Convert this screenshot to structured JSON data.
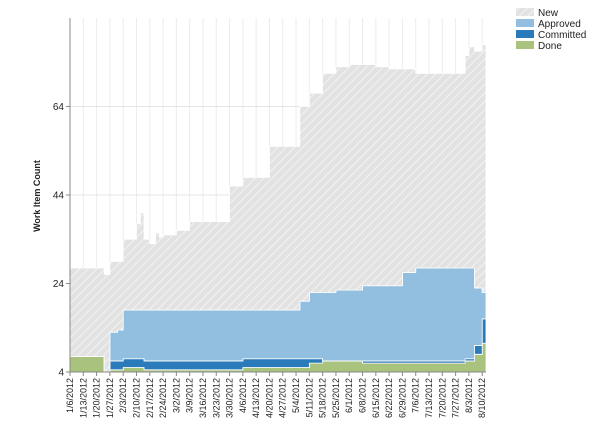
{
  "chart_data": {
    "type": "area",
    "stacked": true,
    "ylabel": "Work Item Count",
    "xlabel": "",
    "ylim": [
      4,
      84
    ],
    "y_ticks": [
      4,
      24,
      44,
      64
    ],
    "x_ticks": [
      "1/6/2012",
      "1/13/2012",
      "1/20/2012",
      "1/27/2012",
      "2/3/2012",
      "2/10/2012",
      "2/17/2012",
      "2/24/2012",
      "3/2/2012",
      "3/9/2012",
      "3/16/2012",
      "3/23/2012",
      "3/30/2012",
      "4/6/2012",
      "4/13/2012",
      "4/20/2012",
      "4/27/2012",
      "5/4/2012",
      "5/11/2012",
      "5/18/2012",
      "5/25/2012",
      "6/1/2012",
      "6/8/2012",
      "6/15/2012",
      "6/22/2012",
      "6/29/2012",
      "7/6/2012",
      "7/13/2012",
      "7/20/2012",
      "7/27/2012",
      "8/3/2012",
      "8/10/2012"
    ],
    "grid": true,
    "legend_position": "top-right",
    "x": [
      "1/6/2012",
      "1/13/2012",
      "1/20/2012",
      "1/23/2012",
      "1/24/2012",
      "1/27/2012",
      "1/31/2012",
      "2/3/2012",
      "2/10/2012",
      "2/12/2012",
      "2/14/2012",
      "2/17/2012",
      "2/20/2012",
      "2/22/2012",
      "2/24/2012",
      "3/2/2012",
      "3/9/2012",
      "3/16/2012",
      "3/23/2012",
      "3/30/2012",
      "4/6/2012",
      "4/13/2012",
      "4/20/2012",
      "4/27/2012",
      "5/4/2012",
      "5/6/2012",
      "5/11/2012",
      "5/18/2012",
      "5/25/2012",
      "6/1/2012",
      "6/8/2012",
      "6/15/2012",
      "6/22/2012",
      "6/29/2012",
      "7/6/2012",
      "7/13/2012",
      "7/20/2012",
      "7/27/2012",
      "8/1/2012",
      "8/3/2012",
      "8/6/2012",
      "8/10/2012",
      "8/12/2012"
    ],
    "series": [
      {
        "name": "Done",
        "color": "#a9c27d",
        "values": [
          3.5,
          3.5,
          3.5,
          3.5,
          0,
          0.5,
          0.5,
          1,
          1,
          1,
          0.5,
          0.5,
          0.5,
          0.5,
          0.5,
          0.5,
          0.5,
          0.5,
          0.5,
          0.5,
          1,
          1,
          1,
          1,
          1,
          1,
          2,
          2.5,
          2.5,
          2.5,
          2,
          2,
          2,
          2,
          2,
          2,
          2,
          2,
          2.5,
          2.5,
          4,
          6.5,
          6.5
        ]
      },
      {
        "name": "Committed",
        "color": "#2b7bba",
        "values": [
          0,
          0,
          0,
          0,
          0,
          2,
          2,
          2,
          2,
          2,
          2,
          2,
          2,
          2,
          2,
          2,
          2,
          2,
          2,
          2,
          2,
          2,
          2,
          2,
          2,
          2,
          1,
          0,
          0,
          0,
          0.5,
          0.5,
          0.5,
          0.5,
          0.5,
          0.5,
          0.5,
          0.5,
          0.5,
          0.5,
          2,
          5.5,
          6
        ]
      },
      {
        "name": "Approved",
        "color": "#92bfe0",
        "values": [
          0,
          0,
          0,
          0,
          0,
          6.5,
          7,
          11,
          11,
          11,
          11.5,
          11.5,
          11.5,
          11.5,
          11.5,
          11.5,
          11.5,
          11.5,
          11.5,
          11.5,
          11,
          11,
          11,
          11,
          11,
          13,
          15,
          15.5,
          16,
          16,
          17,
          17,
          17,
          20,
          21,
          21,
          21,
          21,
          20.5,
          20.5,
          13,
          6,
          6
        ]
      },
      {
        "name": "New",
        "color": "#d9d9d9",
        "values": [
          20,
          20,
          20,
          20,
          22,
          16,
          15.5,
          16,
          19.5,
          22,
          16,
          15,
          17.5,
          16.5,
          17,
          18,
          20,
          20,
          20,
          28,
          30,
          30,
          37,
          37,
          37,
          44,
          45,
          49.5,
          50.5,
          51,
          50,
          49.5,
          49,
          46,
          44,
          44,
          44,
          44,
          48,
          50,
          53.5,
          56,
          57
        ]
      }
    ]
  },
  "legend": {
    "items": [
      {
        "label": "New"
      },
      {
        "label": "Approved"
      },
      {
        "label": "Committed"
      },
      {
        "label": "Done"
      }
    ]
  }
}
